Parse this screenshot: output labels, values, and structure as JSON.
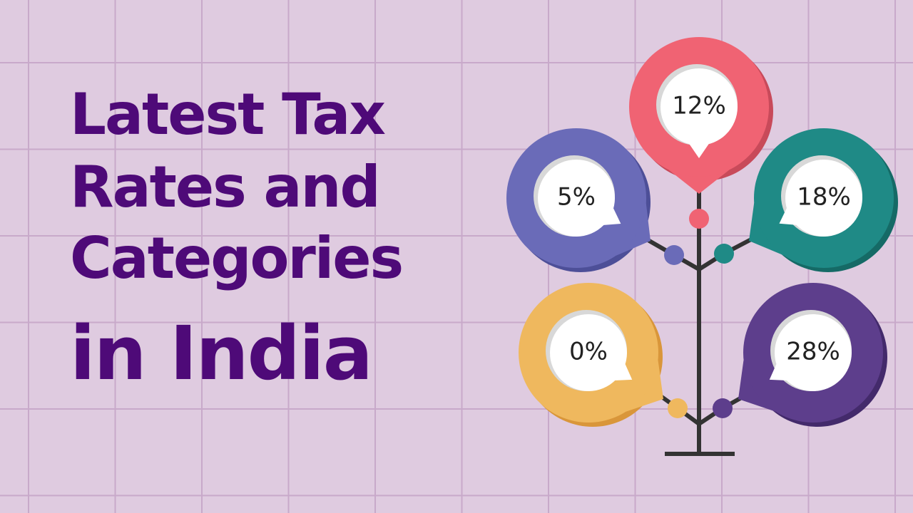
{
  "title": {
    "lines": [
      "Latest Tax",
      "Rates and",
      "Categories",
      "in India"
    ]
  },
  "bubbles": [
    {
      "label": "12%"
    },
    {
      "label": "5%"
    },
    {
      "label": "18%"
    },
    {
      "label": "0%"
    },
    {
      "label": "28%"
    }
  ]
}
